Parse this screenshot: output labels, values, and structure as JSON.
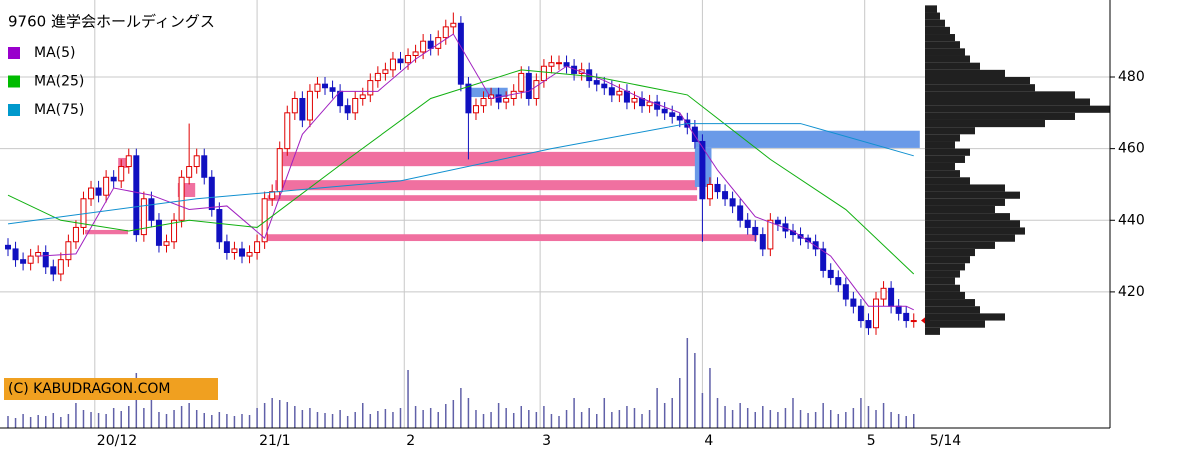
{
  "chart_data": {
    "type": "candlestick",
    "title": "9760 進学会ホールディングス",
    "watermark": "(C) KABUDRAGON.COM",
    "xlim": [
      -1.06,
      146
    ],
    "ylim": [
      382,
      501.5
    ],
    "yticks": [
      420,
      440,
      460,
      480
    ],
    "xticks": [
      {
        "value": 11.5,
        "label": "20/12"
      },
      {
        "value": 33,
        "label": "21/1"
      },
      {
        "value": 52.5,
        "label": "2"
      },
      {
        "value": 70.5,
        "label": "3"
      },
      {
        "value": 92,
        "label": "4"
      },
      {
        "value": 113.5,
        "label": "5"
      }
    ],
    "last_date": {
      "value": 120,
      "label": "5/14"
    },
    "grid": true,
    "up_color": "#e00000",
    "down_color": "#1010c0",
    "candles": {
      "open": [
        433,
        432,
        429,
        428,
        430,
        431,
        427,
        425,
        429,
        434,
        438,
        446,
        449,
        447,
        452,
        451,
        455,
        458,
        436,
        446,
        440,
        433,
        434,
        440,
        452,
        455,
        458,
        452,
        443,
        434,
        431,
        432,
        430,
        431,
        434,
        446,
        448,
        460,
        470,
        474,
        468,
        476,
        478,
        477,
        476,
        472,
        470,
        474,
        475,
        479,
        481,
        482,
        485,
        484,
        486,
        487,
        490,
        488,
        491,
        494,
        495,
        478,
        470,
        472,
        474,
        475,
        473,
        474,
        476,
        481,
        474,
        479,
        483,
        484,
        484,
        483,
        481,
        482,
        479,
        478,
        477,
        475,
        476,
        473,
        474,
        472,
        473,
        471,
        470,
        469,
        468,
        466,
        462,
        446,
        450,
        448,
        446,
        444,
        440,
        438,
        436,
        432,
        440,
        439,
        437,
        436,
        435,
        434,
        432,
        426,
        424,
        422,
        418,
        416,
        412,
        410,
        418,
        421,
        416,
        414,
        412
      ],
      "high": [
        435,
        434,
        431,
        432,
        433,
        433,
        429,
        431,
        436,
        440,
        448,
        451,
        451,
        454,
        454,
        457,
        460,
        460,
        448,
        448,
        442,
        436,
        442,
        454,
        467,
        460,
        460,
        454,
        445,
        436,
        434,
        434,
        433,
        436,
        448,
        450,
        462,
        472,
        476,
        476,
        478,
        480,
        480,
        479,
        478,
        474,
        476,
        477,
        481,
        483,
        484,
        487,
        487,
        488,
        489,
        492,
        492,
        493,
        496,
        498,
        497,
        480,
        474,
        476,
        477,
        477,
        476,
        478,
        483,
        483,
        481,
        485,
        486,
        486,
        486,
        485,
        484,
        484,
        481,
        480,
        479,
        478,
        478,
        476,
        476,
        475,
        475,
        473,
        472,
        470,
        470,
        468,
        464,
        452,
        452,
        450,
        448,
        446,
        442,
        440,
        438,
        442,
        441,
        441,
        439,
        438,
        436,
        436,
        434,
        428,
        426,
        424,
        420,
        418,
        414,
        420,
        423,
        423,
        418,
        416,
        414
      ],
      "low": [
        430,
        427,
        426,
        426,
        428,
        425,
        423,
        423,
        427,
        432,
        436,
        444,
        445,
        445,
        449,
        449,
        453,
        434,
        434,
        438,
        431,
        431,
        432,
        438,
        450,
        453,
        450,
        441,
        432,
        429,
        429,
        428,
        428,
        429,
        432,
        444,
        446,
        458,
        468,
        466,
        466,
        474,
        475,
        474,
        470,
        468,
        468,
        472,
        473,
        477,
        479,
        480,
        482,
        482,
        484,
        485,
        486,
        486,
        489,
        492,
        476,
        457,
        468,
        470,
        472,
        471,
        471,
        472,
        474,
        472,
        472,
        477,
        481,
        482,
        481,
        479,
        479,
        477,
        476,
        475,
        473,
        473,
        471,
        471,
        470,
        470,
        469,
        468,
        467,
        466,
        464,
        460,
        434,
        444,
        446,
        444,
        442,
        438,
        436,
        434,
        430,
        430,
        437,
        435,
        434,
        433,
        432,
        430,
        424,
        422,
        420,
        416,
        414,
        410,
        408,
        408,
        416,
        414,
        412,
        410,
        410
      ],
      "close": [
        432,
        429,
        428,
        430,
        431,
        427,
        425,
        429,
        434,
        438,
        446,
        449,
        447,
        452,
        451,
        455,
        458,
        436,
        446,
        440,
        433,
        434,
        440,
        452,
        455,
        458,
        452,
        443,
        434,
        431,
        432,
        430,
        431,
        434,
        446,
        448,
        460,
        470,
        474,
        468,
        476,
        478,
        477,
        476,
        472,
        470,
        474,
        475,
        479,
        481,
        482,
        485,
        484,
        486,
        487,
        490,
        488,
        491,
        494,
        495,
        478,
        470,
        472,
        474,
        475,
        473,
        474,
        476,
        481,
        474,
        479,
        483,
        484,
        484,
        483,
        481,
        482,
        479,
        478,
        477,
        475,
        476,
        473,
        474,
        472,
        473,
        471,
        470,
        469,
        468,
        466,
        462,
        446,
        450,
        448,
        446,
        444,
        440,
        438,
        436,
        432,
        440,
        439,
        437,
        436,
        435,
        434,
        432,
        426,
        424,
        422,
        418,
        416,
        412,
        410,
        418,
        421,
        416,
        414,
        412,
        412
      ]
    },
    "series": [
      {
        "name": "MA(5)",
        "color": "#a020c0",
        "x": [
          4,
          9,
          14,
          19,
          24,
          29,
          34,
          39,
          44,
          49,
          54,
          59,
          64,
          69,
          74,
          79,
          84,
          89,
          94,
          99,
          104,
          109,
          114,
          119,
          120
        ],
        "values": [
          430,
          430.6,
          449,
          447,
          443,
          444,
          435,
          464,
          476,
          476,
          485,
          492,
          474,
          476,
          483,
          479,
          474,
          470,
          454,
          441,
          437,
          430,
          416,
          416,
          415
        ]
      },
      {
        "name": "MA(25)",
        "color": "#10b010",
        "x": [
          0,
          7,
          16,
          24,
          33,
          45,
          56,
          68,
          78,
          90,
          101,
          111,
          120
        ],
        "values": [
          447,
          440,
          437,
          440,
          438,
          457,
          474,
          482,
          480,
          475,
          457,
          443,
          425
        ]
      },
      {
        "name": "MA(75)",
        "color": "#1090d0",
        "x": [
          0,
          25,
          52,
          72,
          90,
          105,
          120
        ],
        "values": [
          439,
          446,
          451,
          460,
          467,
          467,
          458
        ]
      }
    ],
    "volume": {
      "color": "#6060a8",
      "vlim": [
        0,
        100
      ],
      "values": [
        12,
        10,
        14,
        11,
        13,
        12,
        15,
        11,
        14,
        25,
        18,
        16,
        15,
        14,
        20,
        17,
        22,
        55,
        20,
        30,
        16,
        14,
        18,
        22,
        25,
        18,
        15,
        13,
        16,
        14,
        12,
        14,
        13,
        20,
        25,
        30,
        28,
        26,
        22,
        18,
        20,
        16,
        15,
        14,
        18,
        12,
        16,
        25,
        14,
        17,
        19,
        16,
        20,
        58,
        22,
        18,
        20,
        16,
        24,
        28,
        40,
        30,
        18,
        14,
        16,
        25,
        20,
        15,
        22,
        18,
        16,
        22,
        14,
        12,
        18,
        30,
        16,
        20,
        14,
        30,
        16,
        18,
        22,
        20,
        14,
        18,
        40,
        25,
        30,
        50,
        90,
        75,
        35,
        60,
        30,
        22,
        18,
        25,
        20,
        16,
        22,
        18,
        16,
        20,
        30,
        18,
        15,
        16,
        25,
        18,
        14,
        16,
        20,
        30,
        22,
        18,
        25,
        16,
        14,
        12,
        14
      ]
    },
    "zones": [
      {
        "x": [
          36.4,
          91.3
        ],
        "y": [
          455.1,
          459.1
        ],
        "color": "#f070a0"
      },
      {
        "x": [
          35.4,
          91.3
        ],
        "y": [
          448.4,
          451.2
        ],
        "color": "#f070a0"
      },
      {
        "x": [
          34.4,
          91.3
        ],
        "y": [
          445.4,
          447
        ],
        "color": "#f070a0"
      },
      {
        "x": [
          33.6,
          99.2
        ],
        "y": [
          434.2,
          436.1
        ],
        "color": "#f070a0"
      },
      {
        "x": [
          10.2,
          15.9
        ],
        "y": [
          436.1,
          437.3
        ],
        "color": "#f070a0"
      },
      {
        "x": [
          22.5,
          24.8
        ],
        "y": [
          446.5,
          450.4
        ],
        "color": "#f070a0"
      },
      {
        "x": [
          14.6,
          15.9
        ],
        "y": [
          454.6,
          457.4
        ],
        "color": "#f070a0"
      },
      {
        "x": [
          61.2,
          66.2
        ],
        "y": [
          474.4,
          477
        ],
        "color": "#6a9ae8"
      },
      {
        "x": [
          91,
          120.8
        ],
        "y": [
          460.2,
          465
        ],
        "color": "#6a9ae8"
      },
      {
        "x": [
          91,
          93.2
        ],
        "y": [
          449.3,
          460.2
        ],
        "color": "#6a9ae8"
      }
    ],
    "profile": {
      "color": "#202020",
      "bins": [
        408,
        410,
        412,
        414,
        416,
        418,
        420,
        422,
        424,
        426,
        428,
        430,
        432,
        434,
        436,
        438,
        440,
        442,
        444,
        446,
        448,
        450,
        452,
        454,
        456,
        458,
        460,
        462,
        464,
        466,
        468,
        470,
        472,
        474,
        476,
        478,
        480,
        482,
        484,
        486,
        488,
        490,
        492,
        494,
        496,
        498,
        500
      ],
      "values": [
        15,
        60,
        80,
        55,
        50,
        40,
        35,
        30,
        35,
        40,
        45,
        50,
        70,
        90,
        100,
        95,
        85,
        70,
        80,
        95,
        80,
        45,
        35,
        30,
        40,
        45,
        30,
        35,
        50,
        120,
        150,
        185,
        165,
        150,
        110,
        105,
        80,
        55,
        45,
        40,
        35,
        30,
        25,
        20,
        15,
        12
      ]
    },
    "legend_colors": [
      "#9900cc",
      "#00bb00",
      "#0099cc"
    ]
  }
}
